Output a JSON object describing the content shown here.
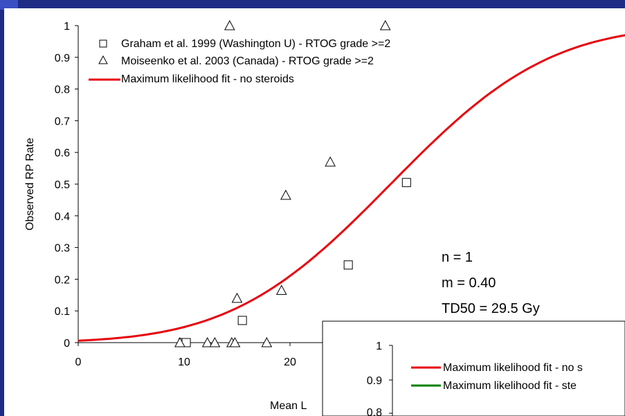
{
  "chart_data": [
    {
      "type": "scatter",
      "title": "",
      "xlabel": "Mean Lung Dose (Gy)",
      "xlabel_visible": "Mean L",
      "ylabel": "Observed RP Rate",
      "xlim": [
        0,
        45
      ],
      "ylim": [
        0,
        1
      ],
      "x_ticks": [
        "0",
        "10",
        "20"
      ],
      "y_ticks": [
        "0",
        "0.1",
        "0.2",
        "0.3",
        "0.4",
        "0.5",
        "0.6",
        "0.7",
        "0.8",
        "0.9",
        "1"
      ],
      "grid": false,
      "legend_position": "top-left",
      "series": [
        {
          "name": "Graham et al. 1999 (Washington U) - RTOG grade >=2",
          "marker": "square",
          "x": [
            9.9,
            10.2,
            15.5,
            25.5,
            31.0
          ],
          "y": [
            0,
            0,
            0.07,
            0.245,
            0.505
          ]
        },
        {
          "name": "Moiseenko et al. 2003 (Canada) - RTOG grade >=2",
          "marker": "triangle",
          "x": [
            9.6,
            12.2,
            12.9,
            14.5,
            14.8,
            15.0,
            17.8,
            19.2,
            19.6,
            23.8,
            14.3,
            29.0
          ],
          "y": [
            0,
            0,
            0,
            0,
            0,
            0.14,
            0,
            0.165,
            0.465,
            0.57,
            1.0,
            1.0
          ]
        },
        {
          "name": "Maximum likelihood fit - no steroids",
          "line": true,
          "color": "#e8000b",
          "model": "LKB",
          "n": 1,
          "m": 0.4,
          "td50": 29.5
        }
      ],
      "annotations": [
        "n = 1",
        "m = 0.40",
        "TD50 = 29.5 Gy"
      ]
    },
    {
      "type": "line",
      "partial": true,
      "ylim_visible": [
        0.8,
        1
      ],
      "y_ticks": [
        "1",
        "0.9",
        "0.8"
      ],
      "legend": [
        {
          "label": "Maximum likelihood fit - no s",
          "color": "#e8000b"
        },
        {
          "label": "Maximum likelihood fit - ste",
          "color": "#008000"
        }
      ]
    }
  ]
}
